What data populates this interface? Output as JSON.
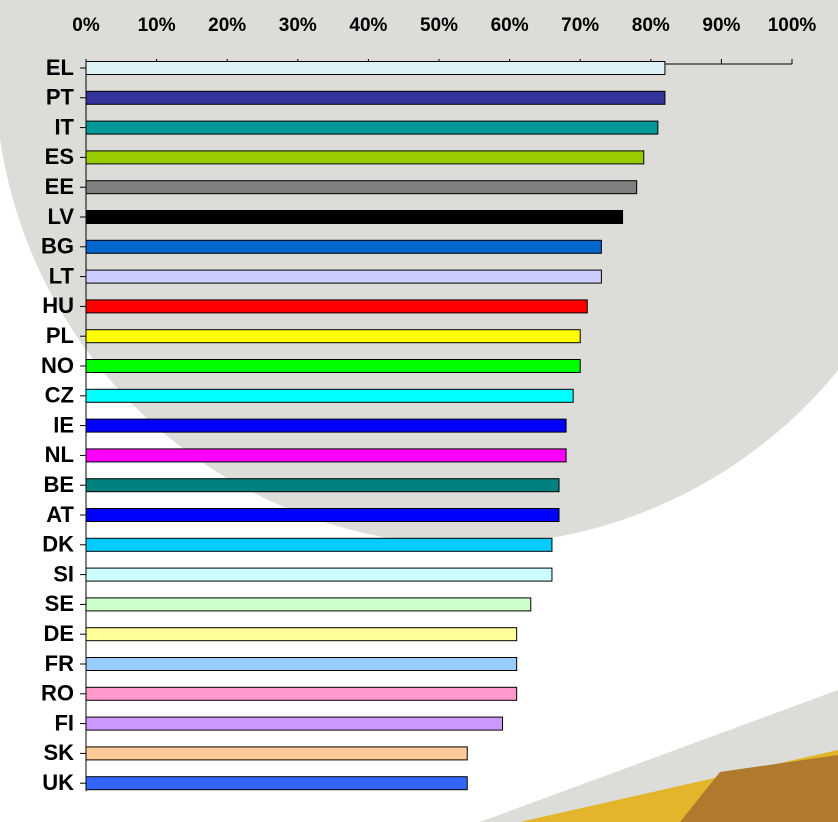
{
  "chart_data": {
    "type": "bar",
    "orientation": "horizontal",
    "categories": [
      "EL",
      "PT",
      "IT",
      "ES",
      "EE",
      "LV",
      "BG",
      "LT",
      "HU",
      "PL",
      "NO",
      "CZ",
      "IE",
      "NL",
      "BE",
      "AT",
      "DK",
      "SI",
      "SE",
      "DE",
      "FR",
      "RO",
      "FI",
      "SK",
      "UK"
    ],
    "values": [
      82,
      82,
      81,
      79,
      78,
      76,
      73,
      73,
      71,
      70,
      70,
      69,
      68,
      68,
      67,
      67,
      66,
      66,
      63,
      61,
      61,
      61,
      59,
      54,
      54
    ],
    "colors": [
      "#ddf2f6",
      "#333399",
      "#009999",
      "#99cc00",
      "#808080",
      "#000000",
      "#0066cc",
      "#ccccff",
      "#ff0000",
      "#ffff00",
      "#00ff00",
      "#00ffff",
      "#0000ff",
      "#ff00ff",
      "#008080",
      "#0000ff",
      "#00ccff",
      "#ccffff",
      "#ccffcc",
      "#ffff99",
      "#99ccff",
      "#ff99cc",
      "#cc99ff",
      "#ffcc99",
      "#3366ff"
    ],
    "xlim": [
      0,
      100
    ],
    "xticks": [
      {
        "value": 0,
        "label": "0%"
      },
      {
        "value": 10,
        "label": "10%"
      },
      {
        "value": 20,
        "label": "20%"
      },
      {
        "value": 30,
        "label": "30%"
      },
      {
        "value": 40,
        "label": "40%"
      },
      {
        "value": 50,
        "label": "50%"
      },
      {
        "value": 60,
        "label": "60%"
      },
      {
        "value": 70,
        "label": "70%"
      },
      {
        "value": 80,
        "label": "80%"
      },
      {
        "value": 90,
        "label": "90%"
      },
      {
        "value": 100,
        "label": "100%"
      }
    ],
    "grid": false
  }
}
